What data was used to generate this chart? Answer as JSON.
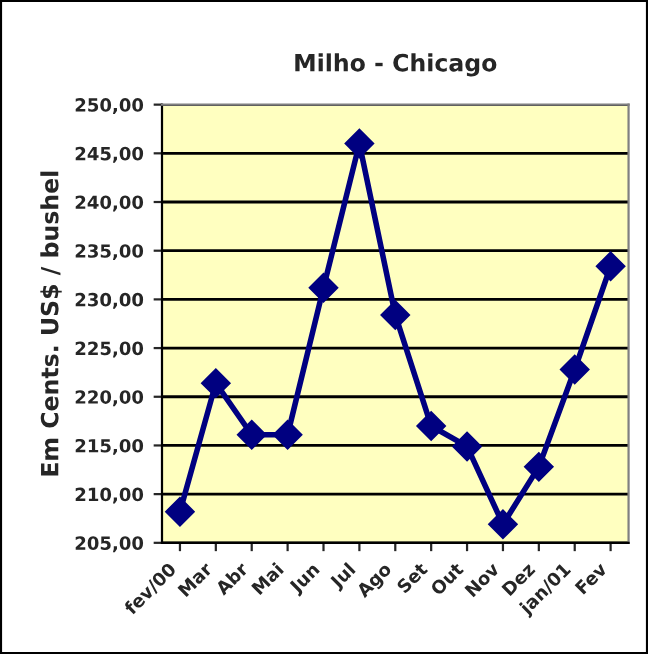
{
  "chart_data": {
    "type": "line",
    "title": "Milho - Chicago",
    "ylabel": "Em Cents. US$ / bushel",
    "categories": [
      "fev/00",
      "Mar",
      "Abr",
      "Mai",
      "Jun",
      "Jul",
      "Ago",
      "Set",
      "Out",
      "Nov",
      "Dez",
      "jan/01",
      "Fev"
    ],
    "series": [
      {
        "color": "#000080",
        "values": [
          208.2,
          221.4,
          216.1,
          216.1,
          231.2,
          246.0,
          228.4,
          217.0,
          214.9,
          206.9,
          212.8,
          222.8,
          233.4
        ]
      }
    ],
    "ylim": [
      205,
      250
    ],
    "yticks": [
      {
        "value": 205,
        "label": "205,00"
      },
      {
        "value": 210,
        "label": "210,00"
      },
      {
        "value": 215,
        "label": "215,00"
      },
      {
        "value": 220,
        "label": "220,00"
      },
      {
        "value": 225,
        "label": "225,00"
      },
      {
        "value": 230,
        "label": "230,00"
      },
      {
        "value": 235,
        "label": "235,00"
      },
      {
        "value": 240,
        "label": "240,00"
      },
      {
        "value": 245,
        "label": "245,00"
      },
      {
        "value": 250,
        "label": "250,00"
      }
    ],
    "grid": "y",
    "marker": "diamond",
    "line_style": "solid"
  }
}
